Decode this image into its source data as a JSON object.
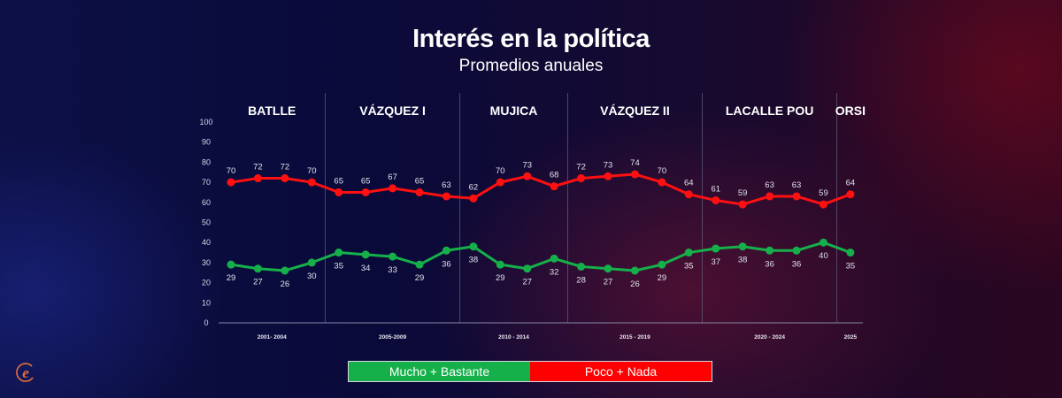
{
  "header": {
    "title": "Interés en la política",
    "subtitle": "Promedios anuales"
  },
  "colors": {
    "mucho": "#16b04a",
    "poco": "#ff1010",
    "logo": "#e8703a"
  },
  "legend": {
    "items": [
      {
        "label": "Mucho + Bastante",
        "color": "#16b04a"
      },
      {
        "label": "Poco + Nada",
        "color": "#ff0000"
      }
    ]
  },
  "chart_data": {
    "type": "line",
    "title": "Interés en la política",
    "subtitle": "Promedios anuales",
    "xlabel": "",
    "ylabel": "",
    "ylim": [
      0,
      100
    ],
    "yticks": [
      0,
      10,
      20,
      30,
      40,
      50,
      60,
      70,
      80,
      90,
      100
    ],
    "grid": false,
    "legend_position": "bottom",
    "periods": [
      {
        "name": "BATLLE",
        "years": "2001- 2004",
        "count": 4
      },
      {
        "name": "VÁZQUEZ I",
        "years": "2005-2009",
        "count": 5
      },
      {
        "name": "MUJICA",
        "years": "2010 - 2014",
        "count": 4
      },
      {
        "name": "VÁZQUEZ II",
        "years": "2015 - 2019",
        "count": 5
      },
      {
        "name": "LACALLE POU",
        "years": "2020 - 2024",
        "count": 5
      },
      {
        "name": "ORSI",
        "years": "2025",
        "count": 1
      }
    ],
    "series": [
      {
        "name": "Poco + Nada",
        "color": "#ff1010",
        "values": [
          70,
          72,
          72,
          70,
          65,
          65,
          67,
          65,
          63,
          62,
          70,
          73,
          68,
          72,
          73,
          74,
          70,
          64,
          61,
          59,
          63,
          63,
          59,
          64
        ]
      },
      {
        "name": "Mucho + Bastante",
        "color": "#16b04a",
        "values": [
          29,
          27,
          26,
          30,
          35,
          34,
          33,
          29,
          36,
          38,
          29,
          27,
          32,
          28,
          27,
          26,
          29,
          35,
          37,
          38,
          36,
          36,
          40,
          35
        ]
      }
    ]
  }
}
